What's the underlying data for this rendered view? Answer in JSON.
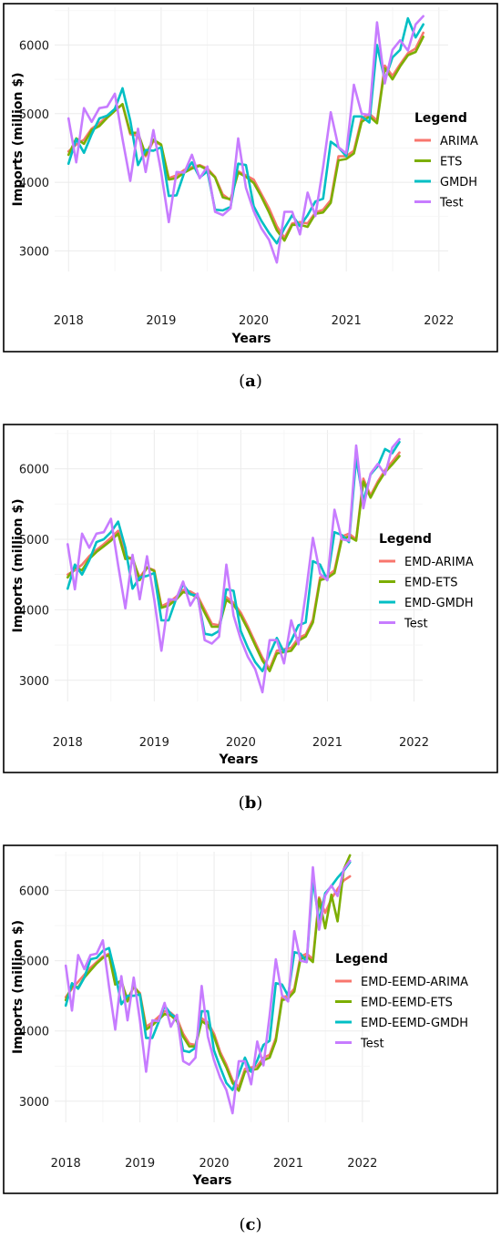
{
  "colors": {
    "ARIMA": "#F8766D",
    "ETS": "#7CAE00",
    "GMDH": "#00BFC4",
    "Test": "#C77CFF"
  },
  "test_series": [
    4930,
    4290,
    5080,
    4880,
    5080,
    5100,
    5290,
    4630,
    4020,
    4780,
    4150,
    4760,
    4150,
    3420,
    4150,
    4140,
    4400,
    4060,
    4230,
    3570,
    3520,
    3620,
    4640,
    3920,
    3580,
    3330,
    3160,
    2830,
    3570,
    3570,
    3240,
    3850,
    3510,
    4220,
    5020,
    4510,
    4420,
    5420,
    5000,
    4980,
    6330,
    5440,
    5930,
    6070,
    5920,
    6300,
    6420
  ],
  "chart_data": [
    {
      "type": "line",
      "panel": "a",
      "caption": "(a)",
      "xlabel": "Years",
      "ylabel": "Imports (million $)",
      "x_ticks": [
        "2018",
        "2019",
        "2020",
        "2021",
        "2022"
      ],
      "y_ticks": [
        3000,
        4000,
        5000,
        6000
      ],
      "xlim": [
        2017.85,
        2022.1
      ],
      "ylim": [
        2700,
        6550
      ],
      "legend_title": "Legend",
      "legend_position": "right",
      "x_start": 2018.0,
      "x_step": 0.0833,
      "series": [
        {
          "name": "ARIMA",
          "color_key": "ARIMA",
          "values": [
            4450,
            4550,
            4620,
            4780,
            4860,
            4960,
            5060,
            5130,
            4700,
            4680,
            4380,
            4600,
            4540,
            4060,
            4100,
            4180,
            4220,
            4250,
            4200,
            4080,
            3820,
            3740,
            4160,
            4100,
            4040,
            3830,
            3620,
            3360,
            3190,
            3400,
            3420,
            3400,
            3560,
            3600,
            3740,
            4380,
            4380,
            4460,
            4930,
            5000,
            4900,
            5700,
            5550,
            5720,
            5880,
            5950,
            6180
          ]
        },
        {
          "name": "ETS",
          "color_key": "ETS",
          "values": [
            4400,
            4640,
            4560,
            4760,
            4820,
            4940,
            5040,
            5140,
            4720,
            4720,
            4400,
            4620,
            4550,
            4040,
            4060,
            4140,
            4200,
            4240,
            4180,
            4070,
            3780,
            3750,
            4140,
            4080,
            3990,
            3790,
            3560,
            3300,
            3150,
            3380,
            3380,
            3350,
            3540,
            3560,
            3700,
            4320,
            4340,
            4420,
            4880,
            4960,
            4860,
            5660,
            5500,
            5690,
            5850,
            5900,
            6120
          ]
        },
        {
          "name": "GMDH",
          "color_key": "GMDH",
          "values": [
            4270,
            4630,
            4430,
            4700,
            4930,
            4970,
            5070,
            5370,
            4900,
            4250,
            4470,
            4460,
            4510,
            3800,
            3810,
            4140,
            4290,
            4070,
            4160,
            3600,
            3590,
            3640,
            4270,
            4250,
            3650,
            3440,
            3260,
            3110,
            3330,
            3520,
            3360,
            3520,
            3720,
            3760,
            4590,
            4510,
            4380,
            4960,
            4960,
            4870,
            6000,
            5490,
            5820,
            5930,
            6390,
            6110,
            6300
          ]
        },
        {
          "name": "Test",
          "color_key": "Test",
          "values_ref": "test_series"
        }
      ]
    },
    {
      "type": "line",
      "panel": "b",
      "caption": "(b)",
      "xlabel": "Years",
      "ylabel": "Imports (million $)",
      "x_ticks": [
        "2018",
        "2019",
        "2020",
        "2021",
        "2022"
      ],
      "y_ticks": [
        3000,
        4000,
        5000,
        6000
      ],
      "xlim": [
        2017.85,
        2022.1
      ],
      "ylim": [
        2700,
        6550
      ],
      "legend_title": "Legend",
      "legend_position": "right",
      "x_start": 2018.0,
      "x_step": 0.0833,
      "series": [
        {
          "name": "EMD-ARIMA",
          "color_key": "ARIMA",
          "values": [
            4500,
            4560,
            4640,
            4760,
            4850,
            4930,
            5020,
            5120,
            4780,
            4700,
            4460,
            4600,
            4560,
            4050,
            4100,
            4180,
            4280,
            4260,
            4200,
            4000,
            3800,
            3780,
            4180,
            4100,
            3960,
            3760,
            3540,
            3320,
            3160,
            3420,
            3440,
            3460,
            3600,
            3650,
            3860,
            4460,
            4480,
            4560,
            5040,
            5080,
            5000,
            5860,
            5620,
            5820,
            5980,
            6100,
            6230
          ]
        },
        {
          "name": "EMD-ETS",
          "color_key": "ETS",
          "values": [
            4460,
            4600,
            4560,
            4720,
            4820,
            4900,
            4980,
            5080,
            4720,
            4740,
            4420,
            4600,
            4550,
            4030,
            4060,
            4140,
            4250,
            4230,
            4170,
            3960,
            3760,
            3760,
            4140,
            4070,
            3920,
            3720,
            3500,
            3280,
            3130,
            3380,
            3400,
            3420,
            3560,
            3620,
            3820,
            4420,
            4450,
            4520,
            5000,
            5040,
            4980,
            5820,
            5590,
            5790,
            5950,
            6060,
            6180
          ]
        },
        {
          "name": "EMD-GMDH",
          "color_key": "GMDH",
          "values": [
            4300,
            4640,
            4500,
            4700,
            4960,
            5000,
            5100,
            5250,
            4880,
            4300,
            4460,
            4480,
            4520,
            3850,
            3850,
            4140,
            4360,
            4220,
            4200,
            3660,
            3640,
            3700,
            4290,
            4270,
            3700,
            3460,
            3260,
            3130,
            3370,
            3600,
            3400,
            3560,
            3780,
            3820,
            4690,
            4640,
            4420,
            5100,
            5060,
            4960,
            6150,
            5540,
            5920,
            6040,
            6280,
            6220,
            6380
          ]
        },
        {
          "name": "Test",
          "color_key": "Test",
          "values_ref": "test_series"
        }
      ]
    },
    {
      "type": "line",
      "panel": "c",
      "caption": "(c)",
      "xlabel": "Years",
      "ylabel": "Imports (million $)",
      "x_ticks": [
        "2018",
        "2019",
        "2020",
        "2021",
        "2022"
      ],
      "y_ticks": [
        3000,
        4000,
        5000,
        6000
      ],
      "xlim": [
        2017.85,
        2022.1
      ],
      "ylim": [
        2700,
        6550
      ],
      "legend_title": "Legend",
      "legend_position": "right",
      "x_start": 2018.0,
      "x_step": 0.0833,
      "series": [
        {
          "name": "EMD-EEMD-ARIMA",
          "color_key": "ARIMA",
          "values": [
            4480,
            4600,
            4700,
            4800,
            4900,
            4980,
            5060,
            5100,
            4680,
            4680,
            4460,
            4620,
            4540,
            4060,
            4120,
            4200,
            4280,
            4260,
            4180,
            3960,
            3820,
            3800,
            4180,
            4120,
            3960,
            3700,
            3520,
            3300,
            3200,
            3460,
            3480,
            3500,
            3620,
            3660,
            3900,
            4480,
            4500,
            4600,
            5060,
            5100,
            5020,
            5900,
            5680,
            5880,
            6020,
            6140,
            6200
          ]
        },
        {
          "name": "EMD-EEMD-ETS",
          "color_key": "ETS",
          "values": [
            4440,
            4640,
            4620,
            4760,
            4860,
            4960,
            5040,
            5080,
            4660,
            4720,
            4420,
            4640,
            4520,
            4020,
            4080,
            4160,
            4240,
            4220,
            4140,
            3920,
            3780,
            3780,
            4140,
            4080,
            3920,
            3660,
            3480,
            3260,
            3150,
            3420,
            3440,
            3460,
            3580,
            3620,
            3860,
            4440,
            4460,
            4560,
            5020,
            5060,
            4980,
            5880,
            5460,
            5940,
            5560,
            6300,
            6500
          ]
        },
        {
          "name": "EMD-EEMD-GMDH",
          "color_key": "GMDH",
          "values": [
            4360,
            4680,
            4600,
            4760,
            5020,
            5040,
            5140,
            5180,
            4820,
            4380,
            4500,
            4500,
            4520,
            3900,
            3900,
            4120,
            4360,
            4240,
            4180,
            3720,
            3700,
            3760,
            4280,
            4280,
            3720,
            3480,
            3260,
            3160,
            3380,
            3620,
            3420,
            3580,
            3800,
            3860,
            4680,
            4660,
            4500,
            5120,
            5100,
            4980,
            6160,
            5560,
            5960,
            6060,
            6180,
            6280,
            6400
          ]
        },
        {
          "name": "Test",
          "color_key": "Test",
          "values_ref": "test_series"
        }
      ]
    }
  ]
}
